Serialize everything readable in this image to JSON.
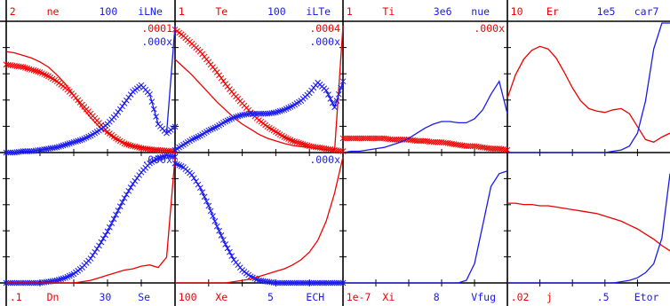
{
  "colors": {
    "red": "#ee0000",
    "blue": "#1a1aee",
    "axis": "#000000"
  },
  "chart_data": [
    {
      "type": "line",
      "panel": 1,
      "top_labels": [
        {
          "text": "2",
          "color": "red"
        },
        {
          "text": "ne",
          "color": "red"
        },
        {
          "text": "100",
          "color": "blue"
        },
        {
          "text": "iLNe",
          "color": "blue"
        }
      ],
      "corner_labels": [
        {
          "text": ".0001",
          "color": "red"
        },
        {
          "text": ".000x",
          "color": "blue"
        }
      ],
      "series": [
        {
          "color": "red",
          "marker": "none",
          "values": [
            0.78,
            0.77,
            0.75,
            0.73,
            0.7,
            0.66,
            0.6,
            0.53,
            0.44,
            0.35,
            0.27,
            0.2,
            0.15,
            0.1,
            0.07,
            0.05,
            0.04,
            0.03,
            0.02,
            0.015,
            0.01
          ]
        },
        {
          "color": "red",
          "marker": "x",
          "values": [
            0.68,
            0.67,
            0.66,
            0.64,
            0.62,
            0.59,
            0.55,
            0.5,
            0.44,
            0.37,
            0.3,
            0.23,
            0.16,
            0.11,
            0.07,
            0.05,
            0.035,
            0.025,
            0.02,
            0.015,
            0.01
          ]
        },
        {
          "color": "blue",
          "marker": "x",
          "values": [
            0.0,
            0.0,
            0.01,
            0.01,
            0.02,
            0.03,
            0.04,
            0.06,
            0.08,
            0.1,
            0.13,
            0.17,
            0.22,
            0.29,
            0.38,
            0.47,
            0.52,
            0.45,
            0.22,
            0.15,
            0.2
          ]
        },
        {
          "color": "blue",
          "marker": "none",
          "values": [
            0.0,
            0.0,
            0.01,
            0.01,
            0.02,
            0.03,
            0.04,
            0.06,
            0.08,
            0.1,
            0.13,
            0.17,
            0.22,
            0.29,
            0.38,
            0.47,
            0.52,
            0.45,
            0.22,
            0.15,
            0.98
          ]
        }
      ]
    },
    {
      "type": "line",
      "panel": 2,
      "top_labels": [
        {
          "text": "1",
          "color": "red"
        },
        {
          "text": "Te",
          "color": "red"
        },
        {
          "text": "100",
          "color": "blue"
        },
        {
          "text": "iLTe",
          "color": "blue"
        }
      ],
      "corner_labels": [
        {
          "text": ".0004",
          "color": "red"
        },
        {
          "text": ".000x",
          "color": "blue"
        }
      ],
      "series": [
        {
          "color": "red",
          "marker": "x",
          "values": [
            0.95,
            0.9,
            0.84,
            0.78,
            0.7,
            0.62,
            0.53,
            0.45,
            0.38,
            0.31,
            0.25,
            0.2,
            0.16,
            0.12,
            0.09,
            0.07,
            0.05,
            0.04,
            0.03,
            0.02,
            0.01
          ]
        },
        {
          "color": "red",
          "marker": "none",
          "values": [
            0.72,
            0.66,
            0.6,
            0.53,
            0.46,
            0.39,
            0.33,
            0.27,
            0.22,
            0.18,
            0.14,
            0.11,
            0.09,
            0.07,
            0.055,
            0.045,
            0.04,
            0.03,
            0.02,
            0.02,
            0.98
          ]
        },
        {
          "color": "blue",
          "marker": "x",
          "values": [
            0.02,
            0.06,
            0.1,
            0.13,
            0.17,
            0.2,
            0.24,
            0.27,
            0.29,
            0.3,
            0.3,
            0.3,
            0.31,
            0.33,
            0.36,
            0.4,
            0.46,
            0.54,
            0.48,
            0.35,
            0.55
          ]
        },
        {
          "color": "blue",
          "marker": "none",
          "values": [
            0.02,
            0.06,
            0.1,
            0.13,
            0.17,
            0.2,
            0.24,
            0.27,
            0.29,
            0.3,
            0.3,
            0.3,
            0.31,
            0.33,
            0.36,
            0.4,
            0.46,
            0.54,
            0.48,
            0.35,
            0.55
          ]
        }
      ]
    },
    {
      "type": "line",
      "panel": 3,
      "top_labels": [
        {
          "text": "1",
          "color": "red"
        },
        {
          "text": "Ti",
          "color": "red"
        },
        {
          "text": "3e6",
          "color": "blue"
        },
        {
          "text": "nue",
          "color": "blue"
        }
      ],
      "corner_labels": [
        {
          "text": ".000x",
          "color": "red"
        }
      ],
      "series": [
        {
          "color": "red",
          "marker": "x",
          "values": [
            0.11,
            0.11,
            0.11,
            0.11,
            0.11,
            0.11,
            0.1,
            0.1,
            0.1,
            0.09,
            0.09,
            0.08,
            0.08,
            0.07,
            0.06,
            0.05,
            0.05,
            0.04,
            0.03,
            0.03,
            0.02
          ]
        },
        {
          "color": "blue",
          "marker": "none",
          "values": [
            0.0,
            0.01,
            0.01,
            0.02,
            0.03,
            0.04,
            0.06,
            0.08,
            0.11,
            0.15,
            0.19,
            0.22,
            0.24,
            0.24,
            0.23,
            0.23,
            0.26,
            0.33,
            0.45,
            0.55,
            0.3
          ]
        }
      ]
    },
    {
      "type": "line",
      "panel": 4,
      "top_labels": [
        {
          "text": "10",
          "color": "red"
        },
        {
          "text": "Er",
          "color": "red"
        },
        {
          "text": "1e5",
          "color": "blue"
        },
        {
          "text": "car7",
          "color": "blue"
        }
      ],
      "corner_labels": [],
      "series": [
        {
          "color": "red",
          "marker": "none",
          "values": [
            0.42,
            0.6,
            0.72,
            0.79,
            0.82,
            0.8,
            0.73,
            0.62,
            0.5,
            0.4,
            0.34,
            0.32,
            0.31,
            0.33,
            0.34,
            0.3,
            0.2,
            0.1,
            0.08,
            0.12,
            0.15
          ]
        },
        {
          "color": "blue",
          "marker": "none",
          "values": [
            0.0,
            0.0,
            0.0,
            0.0,
            0.0,
            0.0,
            0.0,
            0.0,
            0.0,
            0.0,
            0.0,
            0.0,
            0.0,
            0.01,
            0.02,
            0.05,
            0.15,
            0.4,
            0.8,
            1.0,
            1.0
          ]
        }
      ]
    },
    {
      "type": "line",
      "panel": 5,
      "top_labels": [],
      "corner_labels": [
        {
          "text": ".000x",
          "color": "blue"
        }
      ],
      "bottom_labels": [
        {
          "text": ".1",
          "color": "red"
        },
        {
          "text": "Dn",
          "color": "red"
        },
        {
          "text": "30",
          "color": "blue"
        },
        {
          "text": "Se",
          "color": "blue"
        }
      ],
      "series": [
        {
          "color": "blue",
          "marker": "x",
          "values": [
            0.0,
            0.0,
            0.0,
            0.0,
            0.0,
            0.01,
            0.02,
            0.04,
            0.07,
            0.12,
            0.19,
            0.29,
            0.4,
            0.53,
            0.66,
            0.77,
            0.86,
            0.93,
            0.97,
            0.99,
            0.98
          ]
        },
        {
          "color": "blue",
          "marker": "none",
          "values": [
            0.0,
            0.0,
            0.0,
            0.0,
            0.0,
            0.01,
            0.02,
            0.04,
            0.07,
            0.12,
            0.19,
            0.29,
            0.4,
            0.53,
            0.66,
            0.77,
            0.86,
            0.93,
            0.97,
            0.99,
            0.98
          ]
        },
        {
          "color": "red",
          "marker": "none",
          "values": [
            0.0,
            0.0,
            0.0,
            0.0,
            0.0,
            0.0,
            0.0,
            0.0,
            0.0,
            0.01,
            0.02,
            0.04,
            0.06,
            0.08,
            0.1,
            0.11,
            0.13,
            0.14,
            0.12,
            0.2,
            0.98
          ]
        }
      ]
    },
    {
      "type": "line",
      "panel": 6,
      "top_labels": [],
      "corner_labels": [
        {
          "text": ".000x",
          "color": "blue"
        }
      ],
      "bottom_labels": [
        {
          "text": "100",
          "color": "red"
        },
        {
          "text": "Xe",
          "color": "red"
        },
        {
          "text": "5",
          "color": "blue"
        },
        {
          "text": "ECH",
          "color": "blue"
        }
      ],
      "series": [
        {
          "color": "blue",
          "marker": "x",
          "values": [
            0.93,
            0.9,
            0.84,
            0.74,
            0.6,
            0.44,
            0.3,
            0.18,
            0.1,
            0.05,
            0.02,
            0.01,
            0.0,
            0.0,
            0.0,
            0.0,
            0.0,
            0.0,
            0.0,
            0.0,
            0.0
          ]
        },
        {
          "color": "blue",
          "marker": "none",
          "values": [
            0.93,
            0.9,
            0.84,
            0.74,
            0.6,
            0.44,
            0.3,
            0.18,
            0.1,
            0.05,
            0.02,
            0.01,
            0.0,
            0.0,
            0.0,
            0.0,
            0.0,
            0.0,
            0.0,
            0.0,
            0.0
          ]
        },
        {
          "color": "red",
          "marker": "none",
          "values": [
            0.0,
            0.0,
            0.0,
            0.0,
            0.0,
            0.0,
            0.0,
            0.01,
            0.02,
            0.03,
            0.05,
            0.07,
            0.09,
            0.11,
            0.14,
            0.18,
            0.24,
            0.33,
            0.48,
            0.7,
            0.98
          ]
        }
      ]
    },
    {
      "type": "line",
      "panel": 7,
      "top_labels": [],
      "corner_labels": [],
      "bottom_labels": [
        {
          "text": "1e-7",
          "color": "red"
        },
        {
          "text": "Xi",
          "color": "red"
        },
        {
          "text": "8",
          "color": "blue"
        },
        {
          "text": "Vfug",
          "color": "blue"
        }
      ],
      "series": [
        {
          "color": "blue",
          "marker": "none",
          "values": [
            0.0,
            0.0,
            0.0,
            0.0,
            0.0,
            0.0,
            0.0,
            0.0,
            0.0,
            0.0,
            0.0,
            0.0,
            0.0,
            0.0,
            0.0,
            0.02,
            0.15,
            0.45,
            0.75,
            0.85,
            0.87
          ]
        }
      ]
    },
    {
      "type": "line",
      "panel": 8,
      "top_labels": [],
      "corner_labels": [],
      "bottom_labels": [
        {
          "text": ".02",
          "color": "red"
        },
        {
          "text": "j",
          "color": "red"
        },
        {
          "text": ".5",
          "color": "blue"
        },
        {
          "text": "Etor",
          "color": "blue"
        }
      ],
      "series": [
        {
          "color": "red",
          "marker": "none",
          "values": [
            0.62,
            0.62,
            0.61,
            0.61,
            0.6,
            0.6,
            0.59,
            0.58,
            0.57,
            0.56,
            0.55,
            0.54,
            0.52,
            0.5,
            0.48,
            0.45,
            0.42,
            0.38,
            0.34,
            0.29,
            0.25
          ]
        },
        {
          "color": "blue",
          "marker": "none",
          "values": [
            0.0,
            0.0,
            0.0,
            0.0,
            0.0,
            0.0,
            0.0,
            0.0,
            0.0,
            0.0,
            0.0,
            0.0,
            0.0,
            0.0,
            0.01,
            0.02,
            0.04,
            0.08,
            0.15,
            0.35,
            0.85
          ]
        }
      ]
    }
  ]
}
